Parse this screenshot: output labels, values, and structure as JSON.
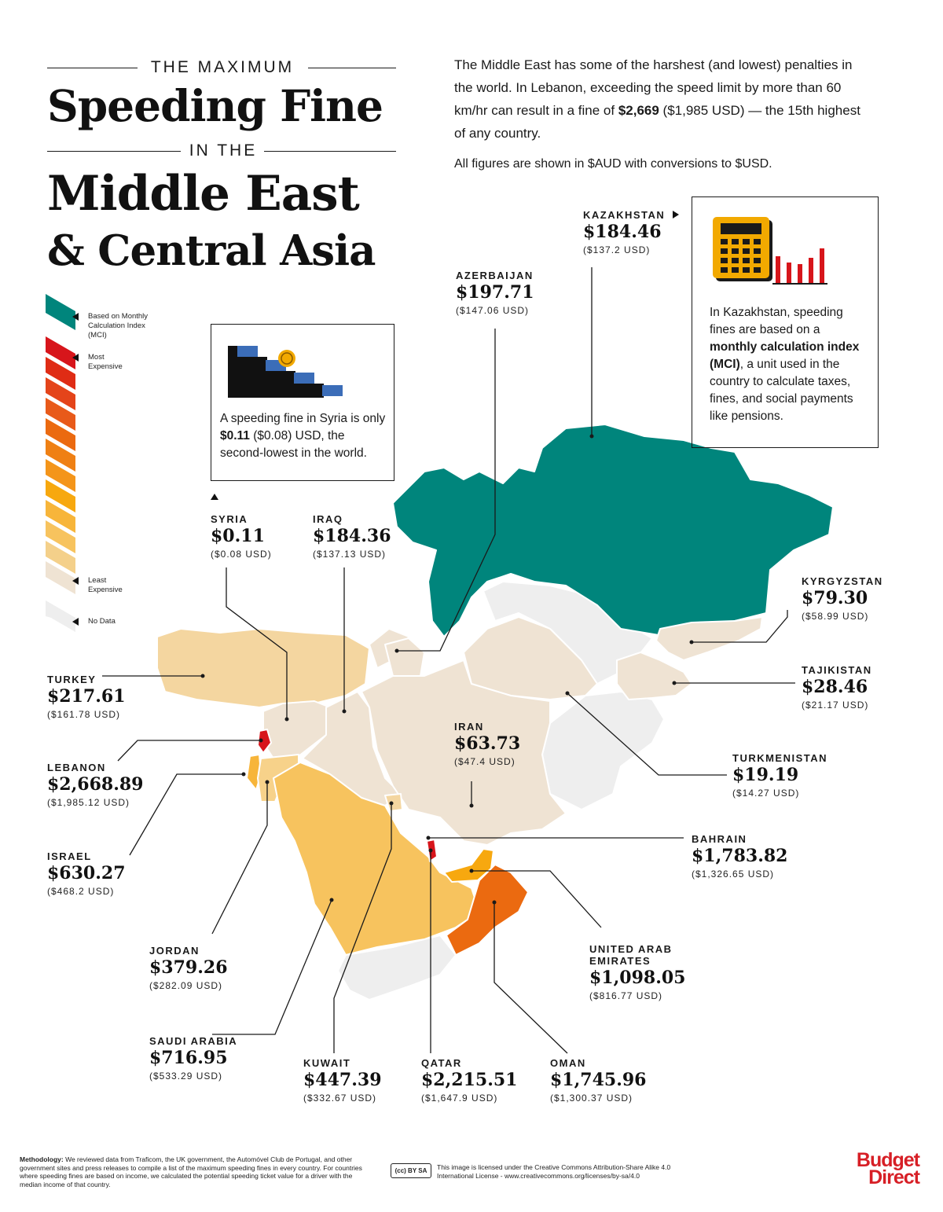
{
  "title": {
    "line1": "THE MAXIMUM",
    "line2": "Speeding Fine",
    "line3": "IN THE",
    "line4": "Middle East",
    "line5": "& Central Asia"
  },
  "intro": {
    "p1_before": "The Middle East has some of the harshest (and lowest) penalties in the world. In Lebanon, exceeding the speed limit by more than 60 km/hr can result in a fine of ",
    "p1_bold": "$2,669",
    "p1_after": " ($1,985 USD) — the 15th highest of any country.",
    "p2": "All figures are shown in $AUD with conversions to $USD."
  },
  "legend": {
    "mci": "Based on Monthly Calculation Index (MCI)",
    "most": "Most Expensive",
    "least": "Least Expensive",
    "nodata": "No Data",
    "colors": {
      "mci": "#00857c",
      "most": "#d7151b",
      "mid_orange": "#eb6a10",
      "amber": "#f7a80f",
      "light_orange": "#f7c35e",
      "pale": "#f4d6a0",
      "least": "#efe3d3",
      "nodata": "#eeeeee"
    }
  },
  "callouts": {
    "syria_before": "A speeding fine in Syria is only ",
    "syria_bold": "$0.11",
    "syria_after": " ($0.08) USD, the second-lowest in the world.",
    "kaz_before": "In Kazakhstan, speeding fines are based on a ",
    "kaz_bold": "monthly calculation index (MCI)",
    "kaz_after": ", a unit used in the country to calculate taxes, fines, and social payments like pensions."
  },
  "countries": {
    "kazakhstan": {
      "name": "KAZAKHSTAN",
      "aud": "$184.46",
      "usd": "($137.2 USD)"
    },
    "azerbaijan": {
      "name": "AZERBAIJAN",
      "aud": "$197.71",
      "usd": "($147.06 USD)"
    },
    "syria": {
      "name": "SYRIA",
      "aud": "$0.11",
      "usd": "($0.08 USD)"
    },
    "iraq": {
      "name": "IRAQ",
      "aud": "$184.36",
      "usd": "($137.13 USD)"
    },
    "kyrgyzstan": {
      "name": "KYRGYZSTAN",
      "aud": "$79.30",
      "usd": "($58.99 USD)"
    },
    "tajikistan": {
      "name": "TAJIKISTAN",
      "aud": "$28.46",
      "usd": "($21.17 USD)"
    },
    "turkey": {
      "name": "TURKEY",
      "aud": "$217.61",
      "usd": "($161.78 USD)"
    },
    "iran": {
      "name": "IRAN",
      "aud": "$63.73",
      "usd": "($47.4 USD)"
    },
    "turkmenistan": {
      "name": "TURKMENISTAN",
      "aud": "$19.19",
      "usd": "($14.27 USD)"
    },
    "lebanon": {
      "name": "LEBANON",
      "aud": "$2,668.89",
      "usd": "($1,985.12 USD)"
    },
    "bahrain": {
      "name": "BAHRAIN",
      "aud": "$1,783.82",
      "usd": "($1,326.65 USD)"
    },
    "israel": {
      "name": "ISRAEL",
      "aud": "$630.27",
      "usd": "($468.2 USD)"
    },
    "uae": {
      "name": "UNITED ARAB EMIRATES",
      "aud": "$1,098.05",
      "usd": "($816.77 USD)"
    },
    "jordan": {
      "name": "JORDAN",
      "aud": "$379.26",
      "usd": "($282.09 USD)"
    },
    "saudi": {
      "name": "SAUDI ARABIA",
      "aud": "$716.95",
      "usd": "($533.29 USD)"
    },
    "kuwait": {
      "name": "KUWAIT",
      "aud": "$447.39",
      "usd": "($332.67 USD)"
    },
    "qatar": {
      "name": "QATAR",
      "aud": "$2,215.51",
      "usd": "($1,647.9 USD)"
    },
    "oman": {
      "name": "OMAN",
      "aud": "$1,745.96",
      "usd": "($1,300.37 USD)"
    }
  },
  "footer": {
    "method_bold": "Methodology:",
    "method_text": " We reviewed data from Traficom, the UK government, the Automóvel Club de Portugal, and other government sites and press releases to compile a list of the maximum speeding fines in every country. For countries where speeding fines are based on income, we calculated the potential speeding ticket value for a driver with the median income of that country.",
    "license": "This image is licensed under the Creative Commons Attribution-Share Alike 4.0 International License - www.creativecommons.org/licenses/by-sa/4.0",
    "logo_line1": "Budget",
    "logo_line2": "Direct"
  }
}
